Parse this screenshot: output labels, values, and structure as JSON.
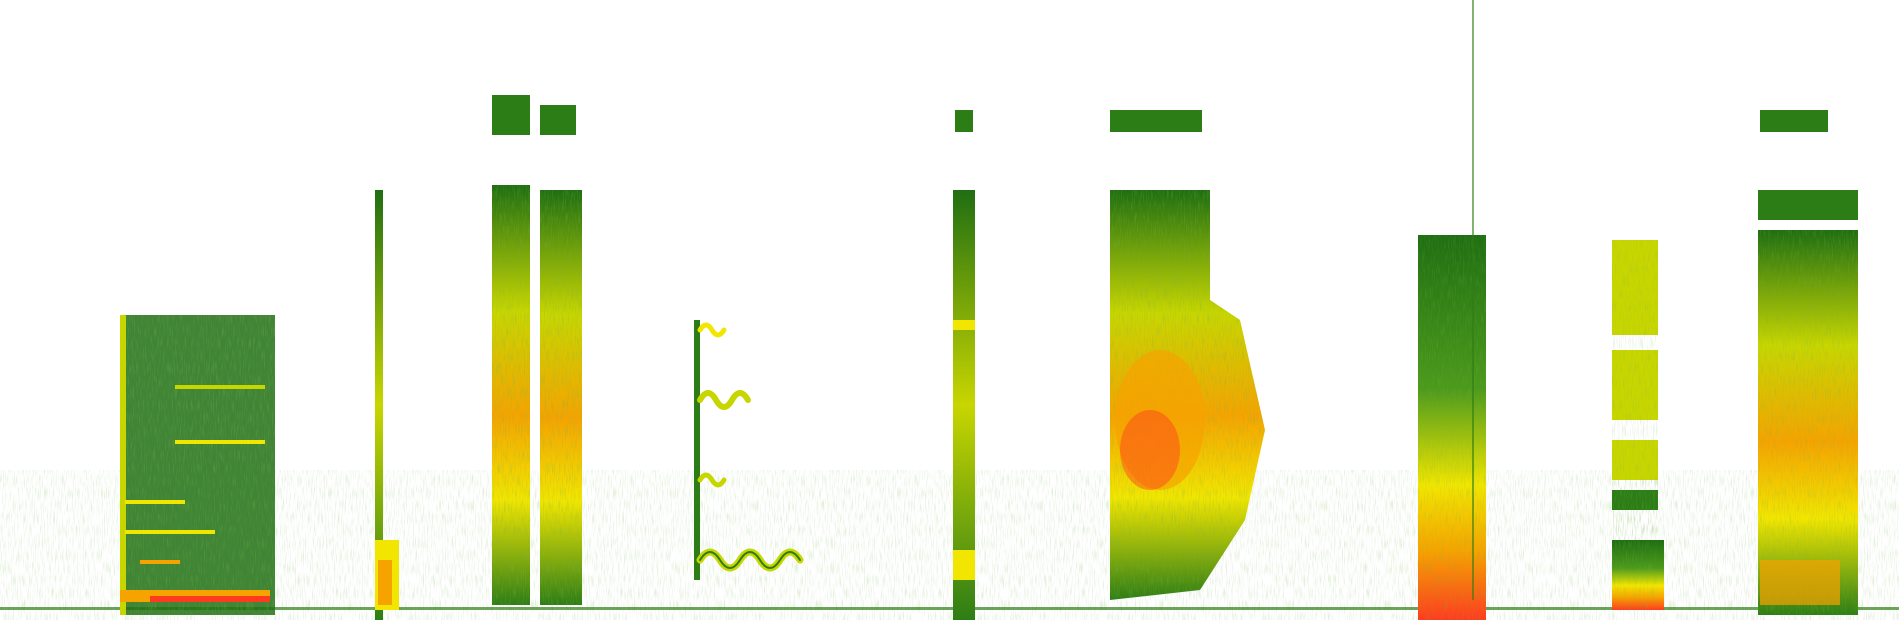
{
  "image": {
    "kind": "spectrogram",
    "background": "#ffffff",
    "colormap": [
      "#ffffff",
      "#3f8f1f",
      "#1f6e12",
      "#c8d600",
      "#f2e600",
      "#f6a300",
      "#ff3b1f"
    ]
  }
}
